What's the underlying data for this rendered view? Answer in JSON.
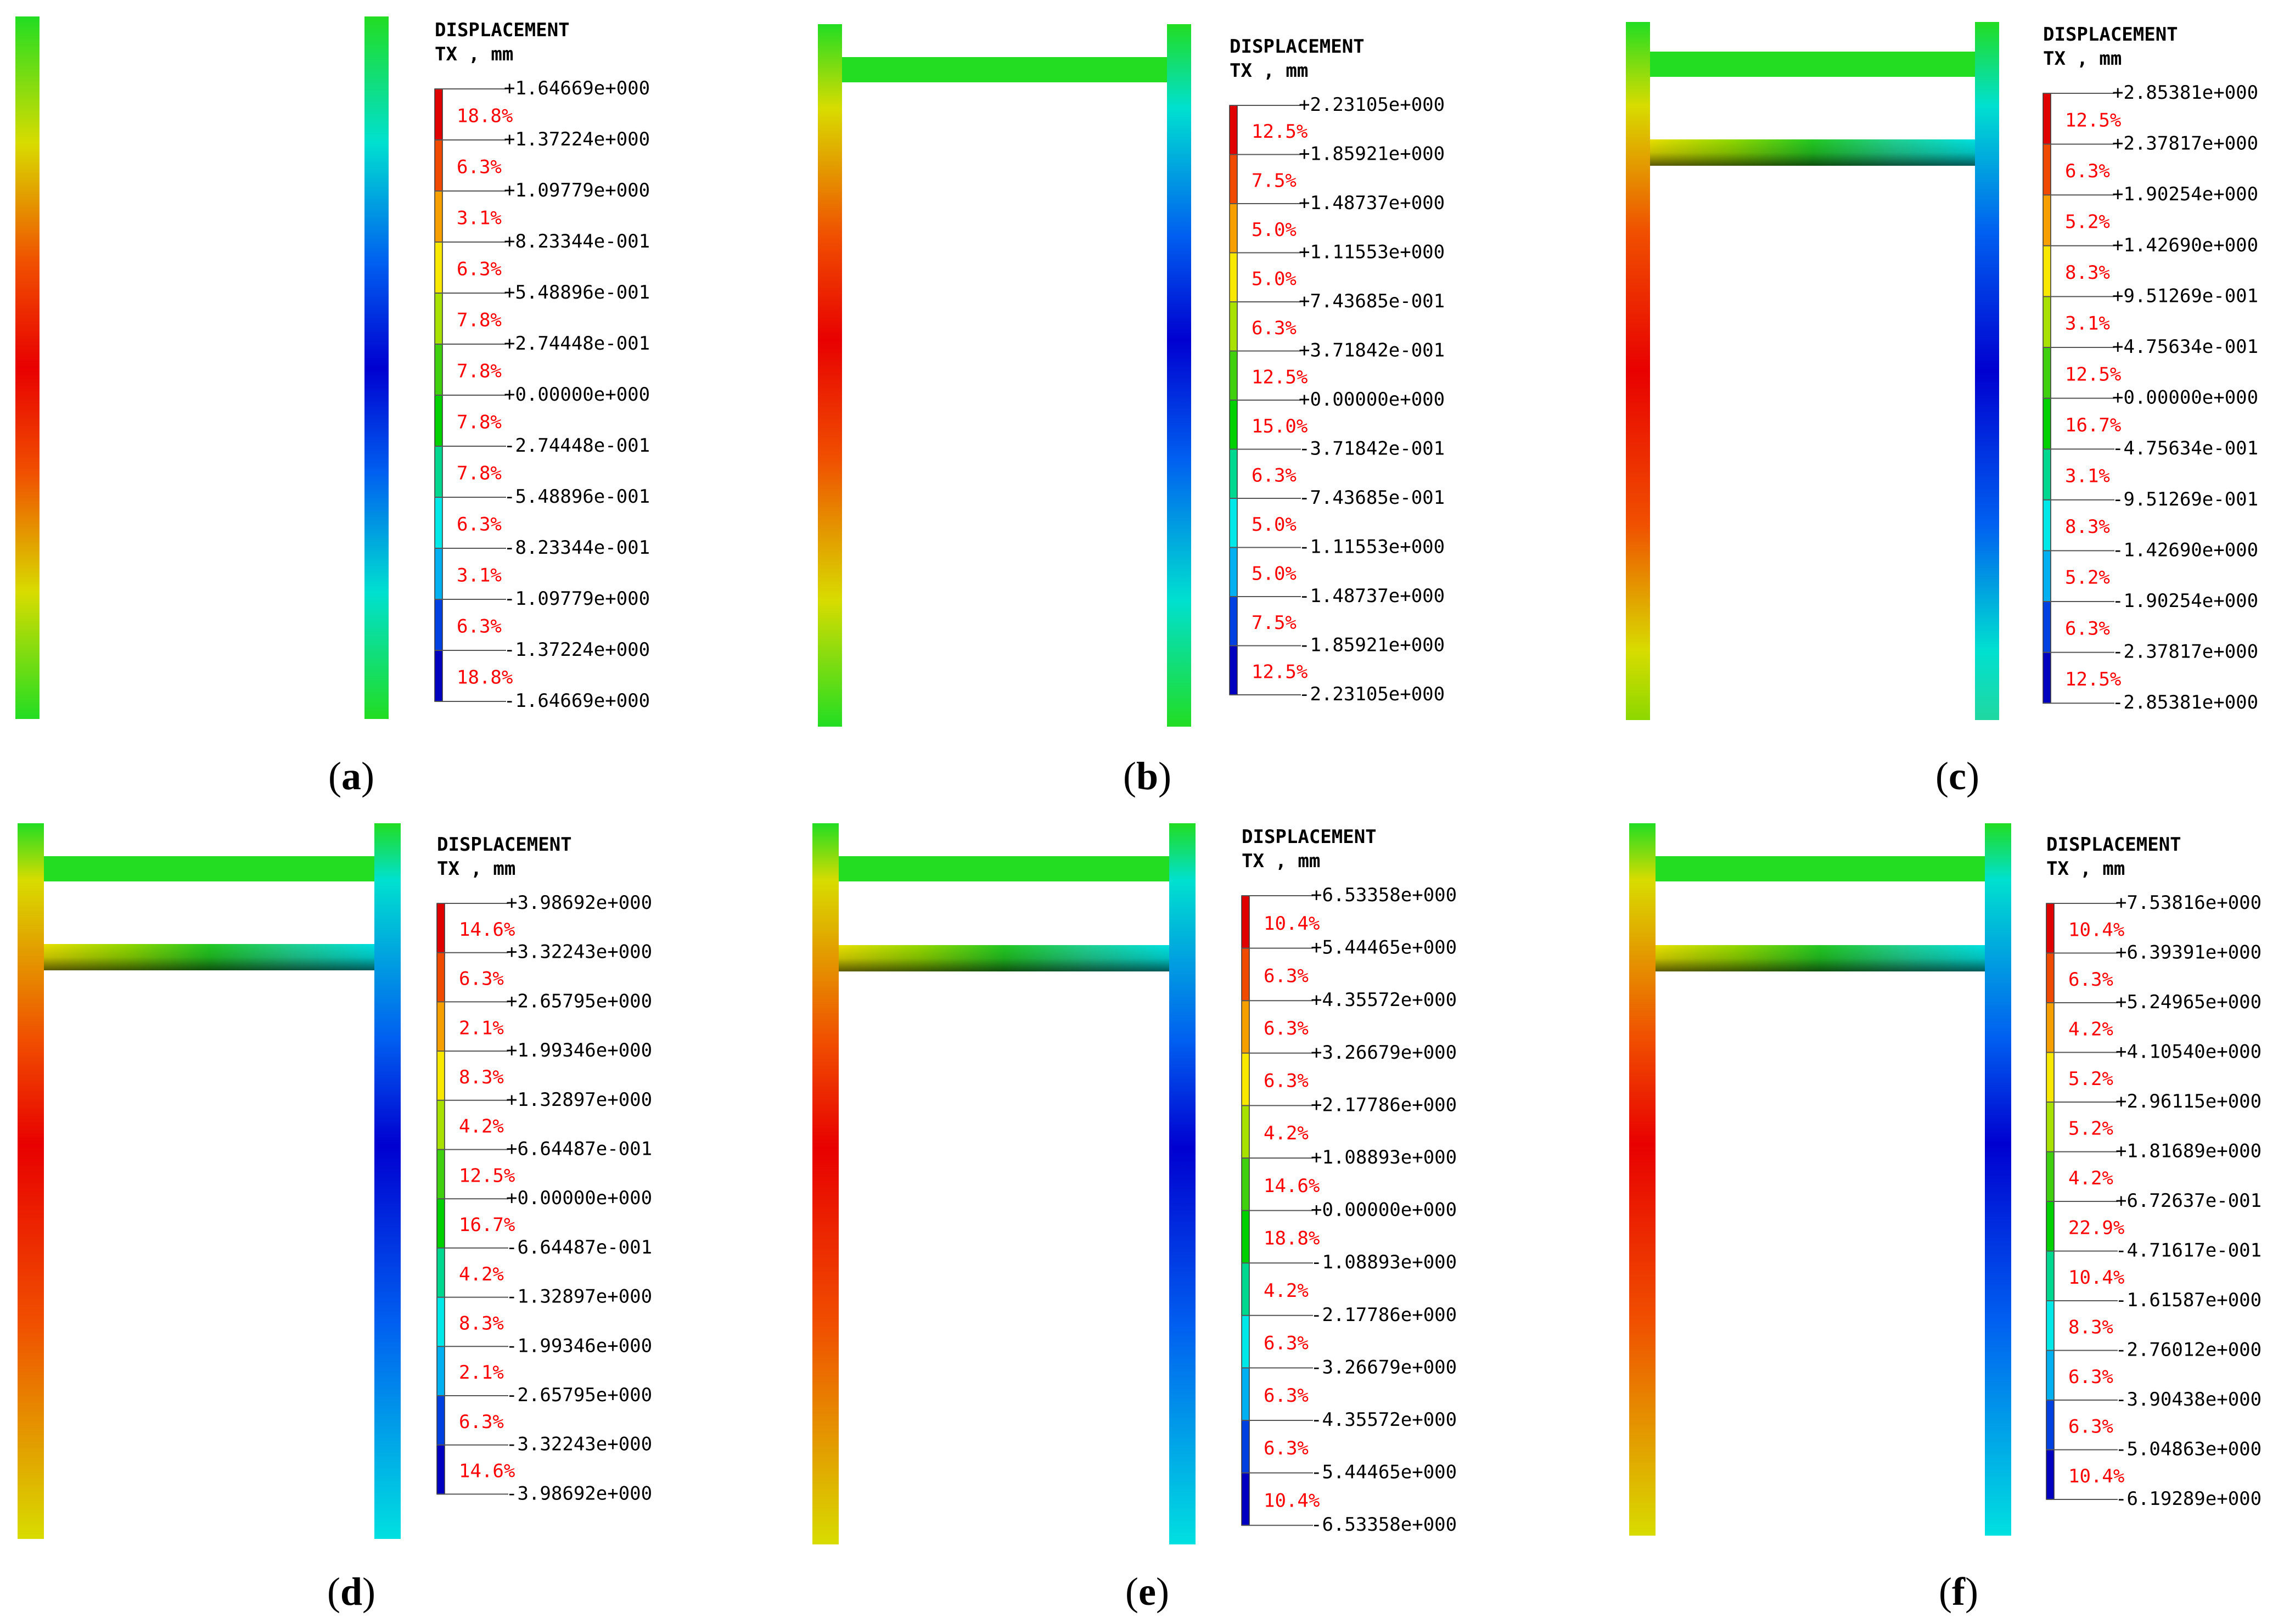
{
  "colors": {
    "legend": [
      "#e00000",
      "#f04a00",
      "#f5a000",
      "#f8e800",
      "#a8e000",
      "#40d010",
      "#00d000",
      "#00d890",
      "#00e8e8",
      "#00b0f0",
      "#0040e0",
      "#0000c0"
    ],
    "beam_green": "#22dd22",
    "pct_text": "#ff0000"
  },
  "panels": [
    {
      "caption_letter": "a",
      "legend_title": "DISPLACEMENT",
      "legend_subtitle": "TX , mm",
      "values": [
        "+1.64669e+000",
        "+1.37224e+000",
        "+1.09779e+000",
        "+8.23344e-001",
        "+5.48896e-001",
        "+2.74448e-001",
        "+0.00000e+000",
        "-2.74448e-001",
        "-5.48896e-001",
        "-8.23344e-001",
        "-1.09779e+000",
        "-1.37224e+000",
        "-1.64669e+000"
      ],
      "percents": [
        "18.8%",
        "6.3%",
        "3.1%",
        "6.3%",
        "7.8%",
        "7.8%",
        "7.8%",
        "7.8%",
        "6.3%",
        "3.1%",
        "6.3%",
        "18.8%"
      ]
    },
    {
      "caption_letter": "b",
      "legend_title": "DISPLACEMENT",
      "legend_subtitle": "TX , mm",
      "values": [
        "+2.23105e+000",
        "+1.85921e+000",
        "+1.48737e+000",
        "+1.11553e+000",
        "+7.43685e-001",
        "+3.71842e-001",
        "+0.00000e+000",
        "-3.71842e-001",
        "-7.43685e-001",
        "-1.11553e+000",
        "-1.48737e+000",
        "-1.85921e+000",
        "-2.23105e+000"
      ],
      "percents": [
        "12.5%",
        "7.5%",
        "5.0%",
        "5.0%",
        "6.3%",
        "12.5%",
        "15.0%",
        "6.3%",
        "5.0%",
        "5.0%",
        "7.5%",
        "12.5%"
      ]
    },
    {
      "caption_letter": "c",
      "legend_title": "DISPLACEMENT",
      "legend_subtitle": "TX , mm",
      "values": [
        "+2.85381e+000",
        "+2.37817e+000",
        "+1.90254e+000",
        "+1.42690e+000",
        "+9.51269e-001",
        "+4.75634e-001",
        "+0.00000e+000",
        "-4.75634e-001",
        "-9.51269e-001",
        "-1.42690e+000",
        "-1.90254e+000",
        "-2.37817e+000",
        "-2.85381e+000"
      ],
      "percents": [
        "12.5%",
        "6.3%",
        "5.2%",
        "8.3%",
        "3.1%",
        "12.5%",
        "16.7%",
        "3.1%",
        "8.3%",
        "5.2%",
        "6.3%",
        "12.5%"
      ]
    },
    {
      "caption_letter": "d",
      "legend_title": "DISPLACEMENT",
      "legend_subtitle": "TX , mm",
      "values": [
        "+3.98692e+000",
        "+3.32243e+000",
        "+2.65795e+000",
        "+1.99346e+000",
        "+1.32897e+000",
        "+6.64487e-001",
        "+0.00000e+000",
        "-6.64487e-001",
        "-1.32897e+000",
        "-1.99346e+000",
        "-2.65795e+000",
        "-3.32243e+000",
        "-3.98692e+000"
      ],
      "percents": [
        "14.6%",
        "6.3%",
        "2.1%",
        "8.3%",
        "4.2%",
        "12.5%",
        "16.7%",
        "4.2%",
        "8.3%",
        "2.1%",
        "6.3%",
        "14.6%"
      ]
    },
    {
      "caption_letter": "e",
      "legend_title": "DISPLACEMENT",
      "legend_subtitle": "TX , mm",
      "values": [
        "+6.53358e+000",
        "+5.44465e+000",
        "+4.35572e+000",
        "+3.26679e+000",
        "+2.17786e+000",
        "+1.08893e+000",
        "+0.00000e+000",
        "-1.08893e+000",
        "-2.17786e+000",
        "-3.26679e+000",
        "-4.35572e+000",
        "-5.44465e+000",
        "-6.53358e+000"
      ],
      "percents": [
        "10.4%",
        "6.3%",
        "6.3%",
        "6.3%",
        "4.2%",
        "14.6%",
        "18.8%",
        "4.2%",
        "6.3%",
        "6.3%",
        "6.3%",
        "10.4%"
      ]
    },
    {
      "caption_letter": "f",
      "legend_title": "DISPLACEMENT",
      "legend_subtitle": "TX , mm",
      "values": [
        "+7.53816e+000",
        "+6.39391e+000",
        "+5.24965e+000",
        "+4.10540e+000",
        "+2.96115e+000",
        "+1.81689e+000",
        "+6.72637e-001",
        "-4.71617e-001",
        "-1.61587e+000",
        "-2.76012e+000",
        "-3.90438e+000",
        "-5.04863e+000",
        "-6.19289e+000"
      ],
      "percents": [
        "10.4%",
        "6.3%",
        "4.2%",
        "5.2%",
        "5.2%",
        "4.2%",
        "22.9%",
        "10.4%",
        "8.3%",
        "6.3%",
        "6.3%",
        "10.4%"
      ]
    }
  ]
}
